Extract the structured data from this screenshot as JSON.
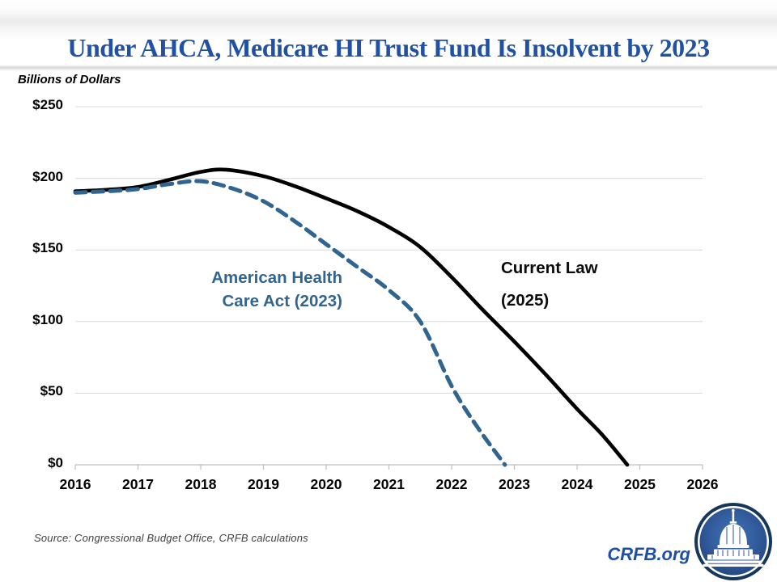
{
  "header": {
    "title": "Under AHCA, Medicare HI Trust Fund Is Insolvent by 2023"
  },
  "chart": {
    "units_label": "Billions of Dollars",
    "y_ticks": [
      "$250",
      "$200",
      "$150",
      "$100",
      "$50",
      "$0"
    ],
    "x_ticks": [
      "2016",
      "2017",
      "2018",
      "2019",
      "2020",
      "2021",
      "2022",
      "2023",
      "2024",
      "2025",
      "2026"
    ],
    "annotations": {
      "ahca_label_line1": "American Health",
      "ahca_label_line2": "Care Act (2023)",
      "current_law_line1": "Current Law",
      "current_law_line2": "(2025)"
    },
    "colors": {
      "title": "#2151A3",
      "current_law_line": "#000000",
      "ahca_line": "#31648F",
      "gridline": "#D9D9D9",
      "axis": "#BFBFBF",
      "brand_blue": "#1D50A2",
      "logo_ring": "#16365C",
      "logo_fill_light": "#4273B5",
      "logo_fill_dark": "#1D3F70"
    }
  },
  "chart_data": {
    "type": "line",
    "title": "Under AHCA, Medicare HI Trust Fund Is Insolvent by 2023",
    "xlabel": "",
    "ylabel": "Billions of Dollars",
    "xlim": [
      2016,
      2026
    ],
    "ylim": [
      0,
      250
    ],
    "y_tick_step": 50,
    "grid": "horizontal",
    "legend_position": "inline-annotations",
    "series": [
      {
        "name": "Current Law (2025)",
        "style": "solid",
        "color": "#000000",
        "points": [
          [
            2016,
            191
          ],
          [
            2016.5,
            192
          ],
          [
            2017,
            194
          ],
          [
            2017.5,
            199
          ],
          [
            2018,
            204.5
          ],
          [
            2018.4,
            206
          ],
          [
            2019,
            201.5
          ],
          [
            2019.5,
            194.5
          ],
          [
            2020,
            186
          ],
          [
            2020.5,
            177
          ],
          [
            2021,
            166
          ],
          [
            2021.5,
            152
          ],
          [
            2022,
            131
          ],
          [
            2022.5,
            108
          ],
          [
            2023,
            86
          ],
          [
            2023.5,
            63
          ],
          [
            2024,
            39
          ],
          [
            2024.4,
            21
          ],
          [
            2024.8,
            0
          ]
        ]
      },
      {
        "name": "American Health Care Act (2023)",
        "style": "dashed",
        "color": "#31648F",
        "points": [
          [
            2016,
            190
          ],
          [
            2016.5,
            191
          ],
          [
            2017,
            192.5
          ],
          [
            2017.5,
            196
          ],
          [
            2018,
            198
          ],
          [
            2018.5,
            193
          ],
          [
            2019,
            184
          ],
          [
            2019.5,
            170
          ],
          [
            2020,
            154
          ],
          [
            2020.5,
            138
          ],
          [
            2021,
            122
          ],
          [
            2021.5,
            100
          ],
          [
            2022,
            55
          ],
          [
            2022.4,
            27
          ],
          [
            2022.85,
            0
          ]
        ]
      }
    ],
    "insolvency_years": {
      "ahca": 2023,
      "current_law": 2025
    }
  },
  "footer": {
    "source": "Source: Congressional  Budget Office, CRFB calculations",
    "brand": "CRFB.org",
    "logo": "capitol-dome-logo"
  }
}
